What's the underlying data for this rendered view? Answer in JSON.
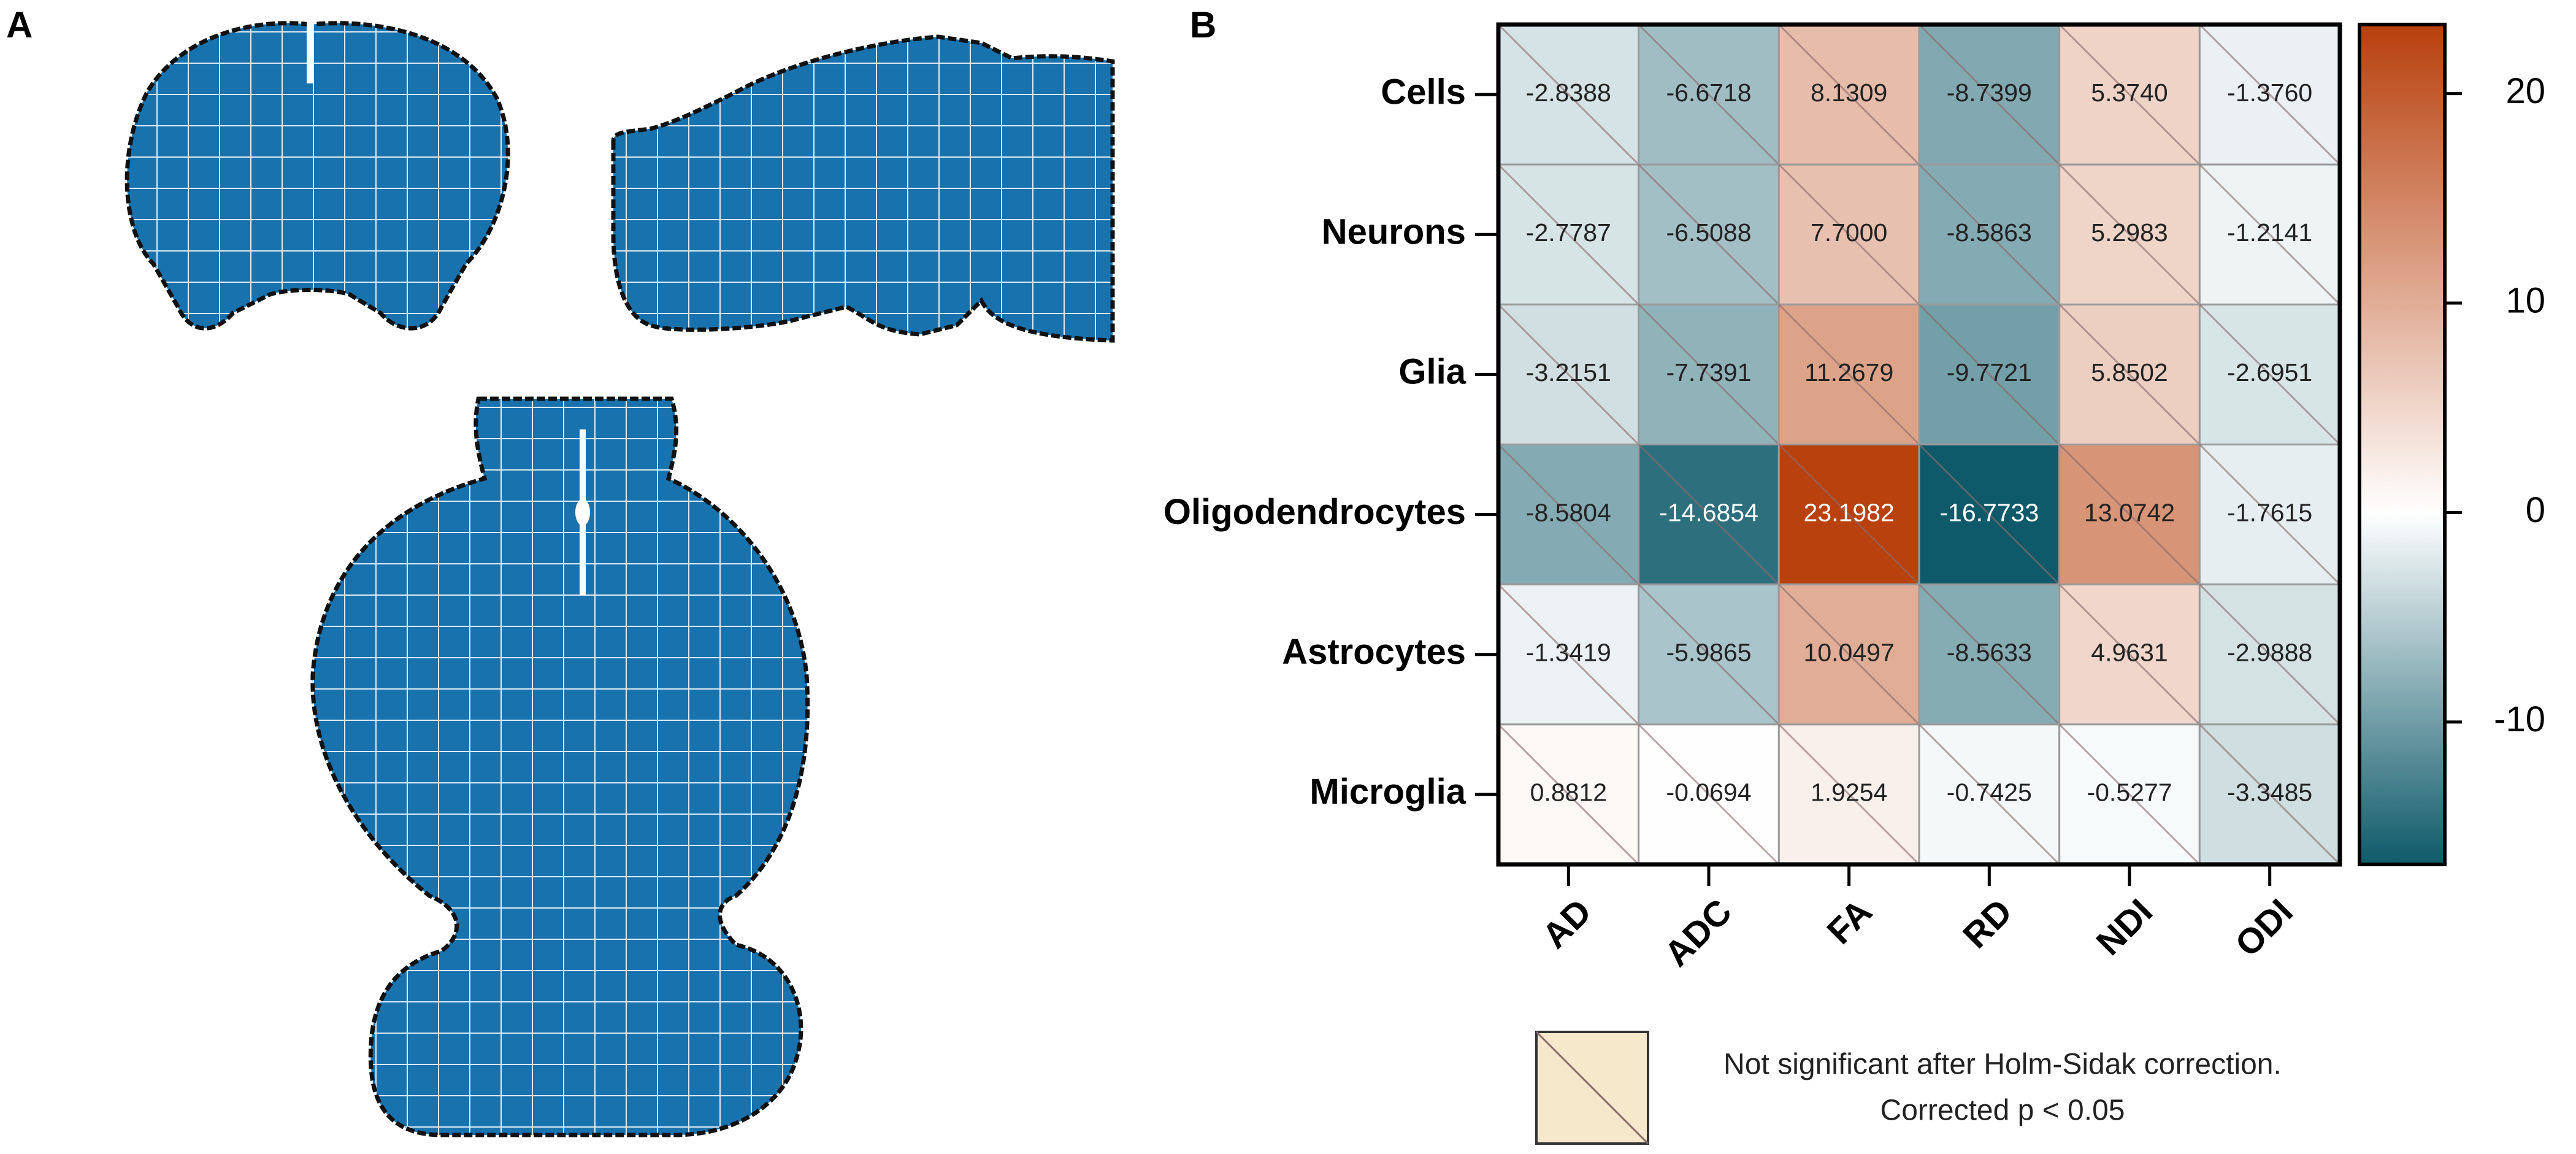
{
  "panel_labels": [
    "A",
    "B"
  ],
  "chart_data": {
    "type": "heatmap",
    "rows": [
      "Cells",
      "Neurons",
      "Glia",
      "Oligodendrocytes",
      "Astrocytes",
      "Microglia"
    ],
    "columns": [
      "AD",
      "ADC",
      "FA",
      "RD",
      "NDI",
      "ODI"
    ],
    "values": [
      [
        -2.8388,
        -6.6718,
        8.1309,
        -8.7399,
        5.374,
        -1.376
      ],
      [
        -2.7787,
        -6.5088,
        7.7,
        -8.5863,
        5.2983,
        -1.2141
      ],
      [
        -3.2151,
        -7.7391,
        11.2679,
        -9.7721,
        5.8502,
        -2.6951
      ],
      [
        -8.5804,
        -14.6854,
        23.1982,
        -16.7733,
        13.0742,
        -1.7615
      ],
      [
        -1.3419,
        -5.9865,
        10.0497,
        -8.5633,
        4.9631,
        -2.9888
      ],
      [
        0.8812,
        -0.0694,
        1.9254,
        -0.7425,
        -0.5277,
        -3.3485
      ]
    ],
    "value_labels": [
      [
        "-2.8388",
        "-6.6718",
        "8.1309",
        "-8.7399",
        "5.3740",
        "-1.3760"
      ],
      [
        "-2.7787",
        "-6.5088",
        "7.7000",
        "-8.5863",
        "5.2983",
        "-1.2141"
      ],
      [
        "-3.2151",
        "-7.7391",
        "11.2679",
        "-9.7721",
        "5.8502",
        "-2.6951"
      ],
      [
        "-8.5804",
        "-14.6854",
        "23.1982",
        "-16.7733",
        "13.0742",
        "-1.7615"
      ],
      [
        "-1.3419",
        "-5.9865",
        "10.0497",
        "-8.5633",
        "4.9631",
        "-2.9888"
      ],
      [
        "0.8812",
        "-0.0694",
        "1.9254",
        "-0.7425",
        "-0.5277",
        "-3.3485"
      ]
    ],
    "zlim": [
      -16.8,
      23.3
    ],
    "zticks": [
      -10,
      0,
      10,
      20
    ],
    "colormap": {
      "low": "#0f5a6a",
      "mid": "#ffffff",
      "high": "#b8400c"
    },
    "diagonal_marks": true,
    "legend_color": "#f6e9cb",
    "legend_text": [
      "Not significant after Holm-Sidak correction.",
      "Corrected p < 0.05"
    ]
  }
}
